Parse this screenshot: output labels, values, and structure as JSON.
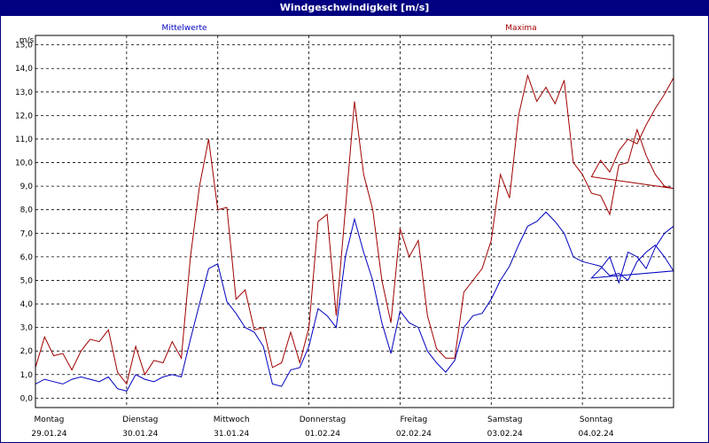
{
  "chart_data": {
    "type": "line",
    "title": "Windgeschwindigkeit [m/s]",
    "ylabel": "m/s",
    "ylim": [
      -0.4,
      15.4
    ],
    "xlim": [
      0,
      7
    ],
    "yticks": [
      "0,0",
      "1,0",
      "2,0",
      "3,0",
      "4,0",
      "5,0",
      "6,0",
      "7,0",
      "8,0",
      "9,0",
      "10,0",
      "11,0",
      "12,0",
      "13,0",
      "14,0",
      "15,0"
    ],
    "xticks": [
      {
        "day": "Montag",
        "date": "29.01.24"
      },
      {
        "day": "Dienstag",
        "date": "30.01.24"
      },
      {
        "day": "Mittwoch",
        "date": "31.01.24"
      },
      {
        "day": "Donnerstag",
        "date": "01.02.24"
      },
      {
        "day": "Freitag",
        "date": "02.02.24"
      },
      {
        "day": "Samstag",
        "date": "03.02.24"
      },
      {
        "day": "Sonntag",
        "date": "04.02.24"
      }
    ],
    "grid": true,
    "series": [
      {
        "name": "Mittelwerte",
        "color": "#0000c0",
        "x": [
          0,
          0.1,
          0.2,
          0.3,
          0.4,
          0.5,
          0.6,
          0.7,
          0.8,
          0.9,
          1.0,
          1.1,
          1.2,
          1.3,
          1.4,
          1.5,
          1.6,
          1.7,
          1.8,
          1.9,
          2.0,
          2.1,
          2.2,
          2.3,
          2.4,
          2.5,
          2.6,
          2.7,
          2.8,
          2.9,
          3.0,
          3.1,
          3.2,
          3.3,
          3.4,
          3.5,
          3.6,
          3.7,
          3.8,
          3.9,
          4.0,
          4.1,
          4.2,
          4.3,
          4.4,
          4.5,
          4.6,
          4.7,
          4.8,
          4.9,
          5.0,
          5.1,
          5.2,
          5.3,
          5.4,
          5.5,
          5.6,
          5.7,
          5.8,
          5.9,
          6.0,
          6.1,
          6.2,
          6.3,
          6.4,
          6.5,
          6.6,
          6.7,
          6.8,
          6.9,
          7.0
        ],
        "y": [
          0.6,
          0.8,
          0.7,
          0.6,
          0.8,
          0.9,
          0.8,
          0.7,
          0.9,
          0.4,
          0.3,
          1.0,
          0.8,
          0.7,
          0.9,
          1.0,
          0.9,
          2.5,
          4.0,
          5.5,
          5.7,
          4.1,
          3.6,
          3.0,
          2.8,
          2.2,
          0.6,
          0.5,
          1.2,
          1.3,
          2.2,
          3.8,
          3.5,
          3.0,
          6.0,
          7.6,
          6.2,
          5.0,
          3.2,
          1.9,
          3.7,
          3.2,
          3.0,
          2.0,
          1.5,
          1.1,
          1.6,
          3.0,
          3.5,
          3.6,
          4.2,
          5.0,
          5.6,
          6.5,
          7.3,
          7.5,
          7.9,
          7.5,
          7.0,
          6.0,
          5.8,
          5.7,
          5.6,
          5.2,
          5.3,
          5.0,
          5.8,
          6.2,
          6.5,
          6.0,
          5.4
        ],
        "x_cont": [
          6.0,
          6.1,
          6.2,
          6.3,
          6.4,
          6.5,
          6.6,
          6.7,
          6.8,
          6.9,
          7.0
        ],
        "y_cont": [
          5.4,
          5.1,
          5.5,
          6.0,
          4.9,
          6.2,
          6.0,
          5.5,
          6.4,
          7.0,
          7.3
        ]
      },
      {
        "name": "Maxima",
        "color": "#a00000",
        "x": [
          0,
          0.1,
          0.2,
          0.3,
          0.4,
          0.5,
          0.6,
          0.7,
          0.8,
          0.9,
          1.0,
          1.1,
          1.2,
          1.3,
          1.4,
          1.5,
          1.6,
          1.7,
          1.8,
          1.9,
          2.0,
          2.1,
          2.2,
          2.3,
          2.4,
          2.5,
          2.6,
          2.7,
          2.8,
          2.9,
          3.0,
          3.1,
          3.2,
          3.3,
          3.4,
          3.5,
          3.6,
          3.7,
          3.8,
          3.9,
          4.0,
          4.1,
          4.2,
          4.3,
          4.4,
          4.5,
          4.6,
          4.7,
          4.8,
          4.9,
          5.0,
          5.1,
          5.2,
          5.3,
          5.4,
          5.5,
          5.6,
          5.7,
          5.8,
          5.9,
          6.0,
          6.1,
          6.2,
          6.3,
          6.4,
          6.5,
          6.6,
          6.7,
          6.8,
          6.9,
          7.0
        ],
        "y": [
          1.3,
          2.6,
          1.8,
          1.9,
          1.2,
          2.0,
          2.5,
          2.4,
          2.9,
          1.1,
          0.6,
          2.2,
          1.0,
          1.6,
          1.5,
          2.4,
          1.7,
          6.0,
          9.0,
          11.0,
          8.0,
          8.1,
          4.2,
          4.6,
          2.9,
          3.0,
          1.3,
          1.5,
          2.8,
          1.5,
          3.0,
          7.5,
          7.8,
          3.5,
          8.0,
          12.6,
          9.5,
          8.0,
          5.0,
          3.2,
          7.2,
          6.0,
          6.7,
          3.5,
          2.1,
          1.7,
          1.7,
          4.5,
          5.0,
          5.5,
          6.7,
          9.5,
          8.5,
          12.0,
          13.7,
          12.6,
          13.2,
          12.5,
          13.5,
          10.0,
          9.5,
          8.7,
          8.6,
          7.8,
          9.9,
          10.0,
          11.4,
          10.3,
          9.5,
          9.0,
          8.9
        ],
        "x_cont": [
          6.0,
          6.1,
          6.2,
          6.3,
          6.4,
          6.5,
          6.6,
          6.7,
          6.8,
          6.9,
          7.0
        ],
        "y_cont": [
          8.9,
          9.4,
          10.1,
          9.6,
          10.5,
          11.0,
          10.8,
          11.6,
          12.3,
          12.9,
          13.6
        ]
      }
    ]
  }
}
